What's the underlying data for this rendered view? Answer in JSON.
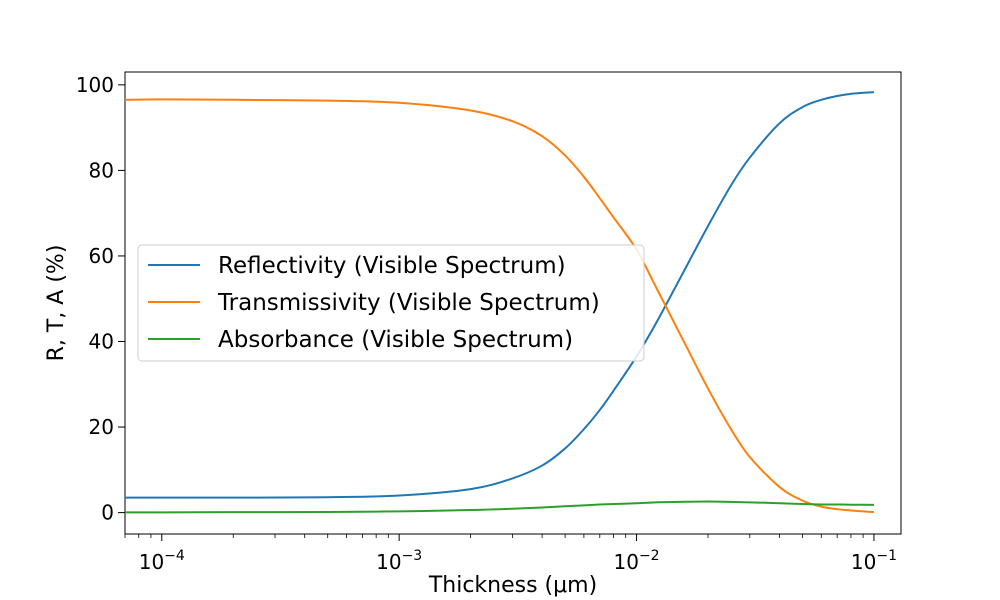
{
  "chart_data": {
    "type": "line",
    "xlabel": "Thickness (μm)",
    "ylabel": "R, T, A (%)",
    "xscale": "log",
    "xlim": [
      7e-05,
      0.13
    ],
    "ylim": [
      -5,
      103
    ],
    "grid": false,
    "legend_position": "center-left",
    "x_ticks": [
      {
        "value": 0.0001,
        "base": "10",
        "exp": "−4"
      },
      {
        "value": 0.001,
        "base": "10",
        "exp": "−3"
      },
      {
        "value": 0.01,
        "base": "10",
        "exp": "−2"
      },
      {
        "value": 0.1,
        "base": "10",
        "exp": "−1"
      }
    ],
    "y_ticks": [
      0,
      20,
      40,
      60,
      80,
      100
    ],
    "x": [
      7e-05,
      0.0001,
      0.0002,
      0.0005,
      0.001,
      0.002,
      0.003,
      0.004,
      0.005,
      0.006,
      0.007,
      0.008,
      0.01,
      0.012,
      0.015,
      0.02,
      0.025,
      0.03,
      0.04,
      0.05,
      0.06,
      0.07,
      0.08,
      0.1
    ],
    "series": [
      {
        "name": "Reflectivity (Visible Spectrum)",
        "color": "#1f77b4",
        "values": [
          3.5,
          3.5,
          3.5,
          3.6,
          4.0,
          5.5,
          8.0,
          11.0,
          15.0,
          19.5,
          24.0,
          28.5,
          36.5,
          44.0,
          54.0,
          67.0,
          76.5,
          83.0,
          91.0,
          94.8,
          96.5,
          97.4,
          97.9,
          98.3
        ]
      },
      {
        "name": "Transmissivity (Visible Spectrum)",
        "color": "#ff7f0e",
        "values": [
          96.5,
          96.6,
          96.5,
          96.3,
          95.8,
          94.0,
          91.5,
          88.0,
          83.5,
          78.5,
          73.5,
          69.0,
          61.5,
          53.0,
          42.5,
          29.0,
          19.5,
          13.0,
          6.0,
          2.8,
          1.4,
          0.8,
          0.5,
          0.1
        ]
      },
      {
        "name": "Absorbance (Visible Spectrum)",
        "color": "#2ca02c",
        "values": [
          0.05,
          0.05,
          0.1,
          0.15,
          0.3,
          0.6,
          0.9,
          1.2,
          1.5,
          1.7,
          1.9,
          2.0,
          2.2,
          2.4,
          2.5,
          2.6,
          2.5,
          2.4,
          2.2,
          2.0,
          1.9,
          1.9,
          1.85,
          1.8
        ]
      }
    ]
  }
}
